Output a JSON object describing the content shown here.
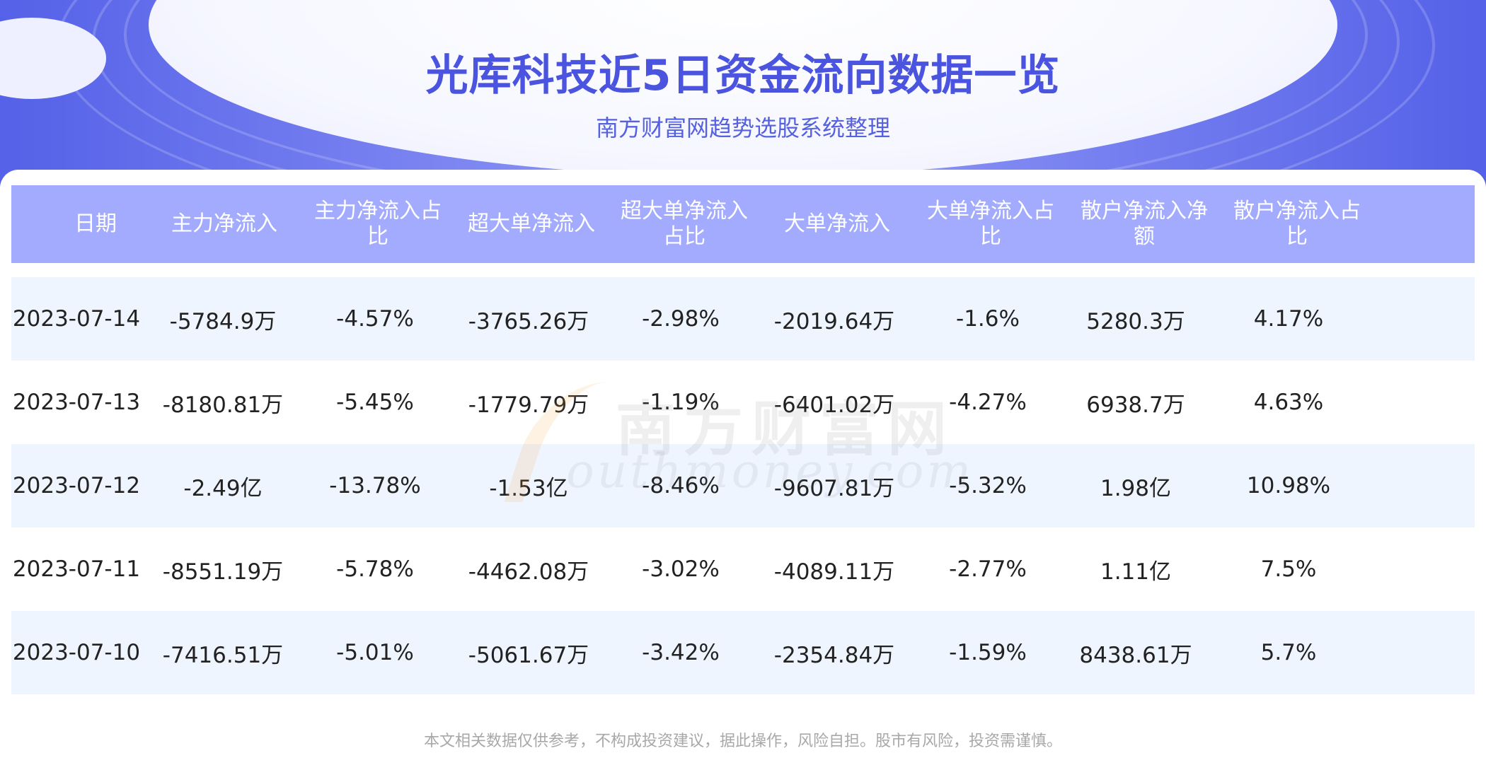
{
  "header": {
    "title": "光库科技近5日资金流向数据一览",
    "subtitle": "南方财富网趋势选股系统整理"
  },
  "table": {
    "columns": [
      "日期",
      "主力净流入",
      "主力净流入占比",
      "超大单净流入",
      "超大单净流入占比",
      "大单净流入",
      "大单净流入占比",
      "散户净流入净额",
      "散户净流入占比"
    ],
    "rows": [
      [
        "2023-07-14",
        "-5784.9万",
        "-4.57%",
        "-3765.26万",
        "-2.98%",
        "-2019.64万",
        "-1.6%",
        "5280.3万",
        "4.17%"
      ],
      [
        "2023-07-13",
        "-8180.81万",
        "-5.45%",
        "-1779.79万",
        "-1.19%",
        "-6401.02万",
        "-4.27%",
        "6938.7万",
        "4.63%"
      ],
      [
        "2023-07-12",
        "-2.49亿",
        "-13.78%",
        "-1.53亿",
        "-8.46%",
        "-9607.81万",
        "-5.32%",
        "1.98亿",
        "10.98%"
      ],
      [
        "2023-07-11",
        "-8551.19万",
        "-5.78%",
        "-4462.08万",
        "-3.02%",
        "-4089.11万",
        "-2.77%",
        "1.11亿",
        "7.5%"
      ],
      [
        "2023-07-10",
        "-7416.51万",
        "-5.01%",
        "-5061.67万",
        "-3.42%",
        "-2354.84万",
        "-1.59%",
        "8438.61万",
        "5.7%"
      ]
    ]
  },
  "watermark": {
    "cn": "南方财富网",
    "en": "outhmoney.com"
  },
  "footer": {
    "disclaimer": "本文相关数据仅供参考，不构成投资建议，据此操作，风险自担。股市有风险，投资需谨慎。"
  },
  "colors": {
    "accent": "#4a54de",
    "header_row": "#a3abff",
    "alt_row": "#eff5ff"
  }
}
